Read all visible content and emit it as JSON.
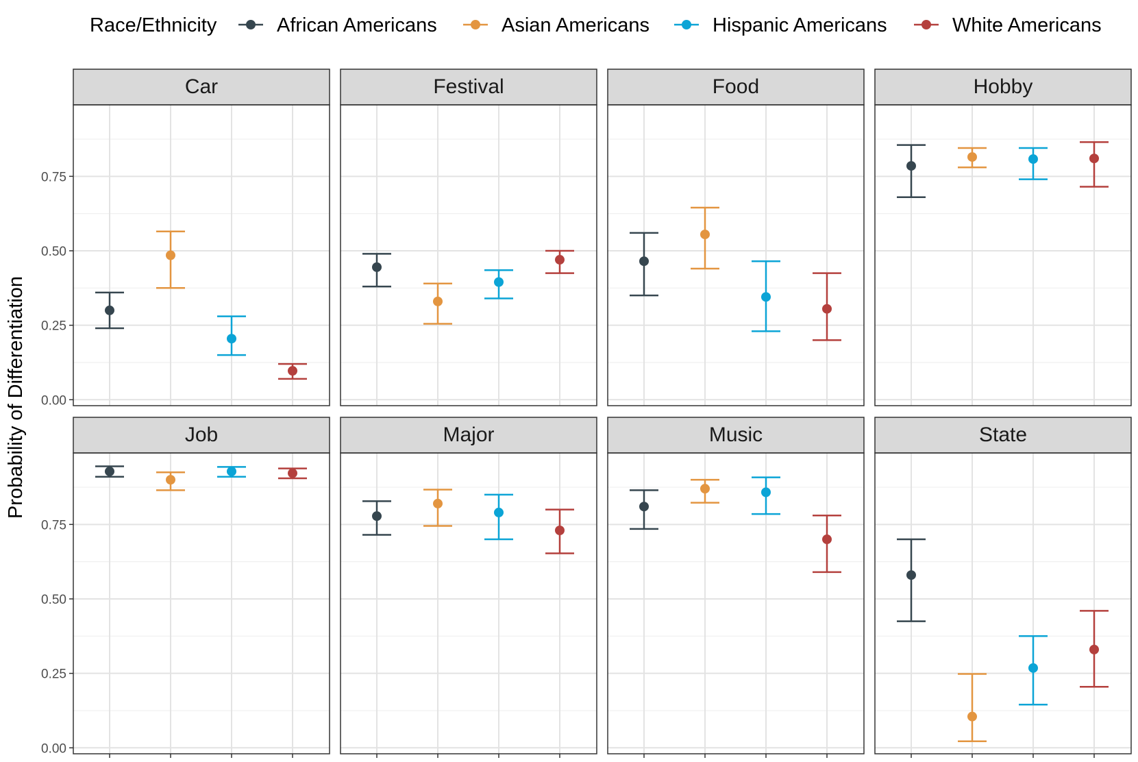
{
  "chart_data": {
    "type": "scatter",
    "subtype": "dot-with-error-bars, faceted",
    "ylabel": "Probability of Differentiation",
    "xlabel": "",
    "ylim": [
      -0.02,
      0.99
    ],
    "yticks": [
      0.0,
      0.25,
      0.5,
      0.75
    ],
    "ytick_labels": [
      "0.00",
      "0.25",
      "0.50",
      "0.75"
    ],
    "grid": true,
    "legend": {
      "title": "Race/Ethnicity",
      "position": "top",
      "entries": [
        "African Americans",
        "Asian Americans",
        "Hispanic Americans",
        "White Americans"
      ]
    },
    "colors": {
      "African Americans": "#36464f",
      "Asian Americans": "#e39540",
      "Hispanic Americans": "#0ba4d6",
      "White Americans": "#b4403d"
    },
    "facets": [
      {
        "name": "Car",
        "points": [
          {
            "group": "African Americans",
            "value": 0.3,
            "lower": 0.24,
            "upper": 0.36
          },
          {
            "group": "Asian Americans",
            "value": 0.485,
            "lower": 0.375,
            "upper": 0.565
          },
          {
            "group": "Hispanic Americans",
            "value": 0.205,
            "lower": 0.15,
            "upper": 0.28
          },
          {
            "group": "White Americans",
            "value": 0.097,
            "lower": 0.07,
            "upper": 0.12
          }
        ]
      },
      {
        "name": "Festival",
        "points": [
          {
            "group": "African Americans",
            "value": 0.445,
            "lower": 0.38,
            "upper": 0.49
          },
          {
            "group": "Asian Americans",
            "value": 0.33,
            "lower": 0.255,
            "upper": 0.39
          },
          {
            "group": "Hispanic Americans",
            "value": 0.395,
            "lower": 0.34,
            "upper": 0.435
          },
          {
            "group": "White Americans",
            "value": 0.47,
            "lower": 0.425,
            "upper": 0.5
          }
        ]
      },
      {
        "name": "Food",
        "points": [
          {
            "group": "African Americans",
            "value": 0.465,
            "lower": 0.35,
            "upper": 0.56
          },
          {
            "group": "Asian Americans",
            "value": 0.555,
            "lower": 0.44,
            "upper": 0.645
          },
          {
            "group": "Hispanic Americans",
            "value": 0.345,
            "lower": 0.23,
            "upper": 0.465
          },
          {
            "group": "White Americans",
            "value": 0.305,
            "lower": 0.2,
            "upper": 0.425
          }
        ]
      },
      {
        "name": "Hobby",
        "points": [
          {
            "group": "African Americans",
            "value": 0.785,
            "lower": 0.68,
            "upper": 0.855
          },
          {
            "group": "Asian Americans",
            "value": 0.815,
            "lower": 0.78,
            "upper": 0.845
          },
          {
            "group": "Hispanic Americans",
            "value": 0.808,
            "lower": 0.74,
            "upper": 0.845
          },
          {
            "group": "White Americans",
            "value": 0.81,
            "lower": 0.715,
            "upper": 0.865
          }
        ]
      },
      {
        "name": "Job",
        "points": [
          {
            "group": "African Americans",
            "value": 0.928,
            "lower": 0.91,
            "upper": 0.945
          },
          {
            "group": "Asian Americans",
            "value": 0.9,
            "lower": 0.865,
            "upper": 0.925
          },
          {
            "group": "Hispanic Americans",
            "value": 0.928,
            "lower": 0.91,
            "upper": 0.943
          },
          {
            "group": "White Americans",
            "value": 0.922,
            "lower": 0.905,
            "upper": 0.938
          }
        ]
      },
      {
        "name": "Major",
        "points": [
          {
            "group": "African Americans",
            "value": 0.778,
            "lower": 0.715,
            "upper": 0.828
          },
          {
            "group": "Asian Americans",
            "value": 0.82,
            "lower": 0.745,
            "upper": 0.867
          },
          {
            "group": "Hispanic Americans",
            "value": 0.79,
            "lower": 0.7,
            "upper": 0.85
          },
          {
            "group": "White Americans",
            "value": 0.73,
            "lower": 0.653,
            "upper": 0.8
          }
        ]
      },
      {
        "name": "Music",
        "points": [
          {
            "group": "African Americans",
            "value": 0.81,
            "lower": 0.735,
            "upper": 0.865
          },
          {
            "group": "Asian Americans",
            "value": 0.87,
            "lower": 0.823,
            "upper": 0.9
          },
          {
            "group": "Hispanic Americans",
            "value": 0.858,
            "lower": 0.785,
            "upper": 0.908
          },
          {
            "group": "White Americans",
            "value": 0.7,
            "lower": 0.59,
            "upper": 0.78
          }
        ]
      },
      {
        "name": "State",
        "points": [
          {
            "group": "African Americans",
            "value": 0.58,
            "lower": 0.425,
            "upper": 0.7
          },
          {
            "group": "Asian Americans",
            "value": 0.105,
            "lower": 0.022,
            "upper": 0.248
          },
          {
            "group": "Hispanic Americans",
            "value": 0.268,
            "lower": 0.145,
            "upper": 0.375
          },
          {
            "group": "White Americans",
            "value": 0.33,
            "lower": 0.205,
            "upper": 0.46
          }
        ]
      }
    ]
  }
}
